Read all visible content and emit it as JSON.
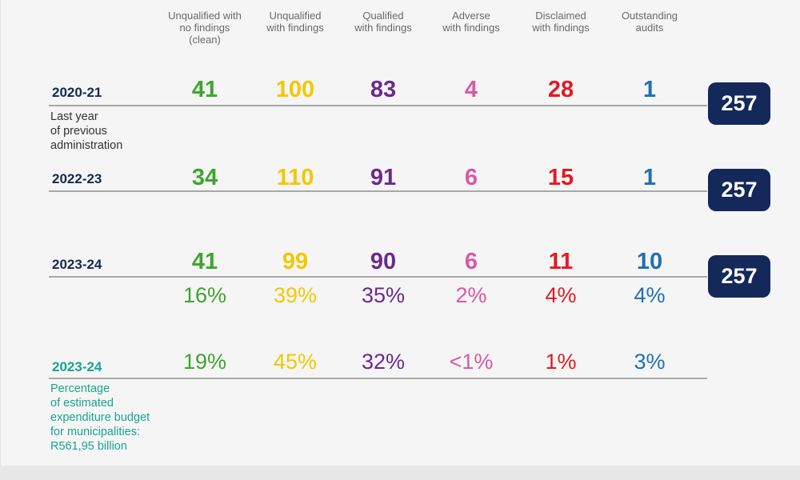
{
  "colors": {
    "clean": "#3ea52f",
    "unqualified_findings": "#f2c800",
    "qualified": "#6c2a8c",
    "adverse": "#d85aa3",
    "disclaimed": "#e01b24",
    "outstanding": "#1f6fb4",
    "navy": "#14285a",
    "teal": "#17a58e"
  },
  "chart_data": {
    "type": "table",
    "columns": [
      {
        "key": "clean",
        "header_lines": [
          "Unqualified with",
          "no findings",
          "(clean)"
        ]
      },
      {
        "key": "unqualified_findings",
        "header_lines": [
          "Unqualified",
          "with findings"
        ]
      },
      {
        "key": "qualified",
        "header_lines": [
          "Qualified",
          "with findings"
        ]
      },
      {
        "key": "adverse",
        "header_lines": [
          "Adverse",
          "with findings"
        ]
      },
      {
        "key": "disclaimed",
        "header_lines": [
          "Disclaimed",
          "with findings"
        ]
      },
      {
        "key": "outstanding",
        "header_lines": [
          "Outstanding",
          "audits"
        ]
      }
    ],
    "rows": [
      {
        "year": "2020-21",
        "subtitle_lines": [
          "Last year",
          "of previous",
          "administration"
        ],
        "values": [
          "41",
          "100",
          "83",
          "4",
          "28",
          "1"
        ],
        "total": "257"
      },
      {
        "year": "2022-23",
        "subtitle_lines": [],
        "values": [
          "34",
          "110",
          "91",
          "6",
          "15",
          "1"
        ],
        "total": "257"
      },
      {
        "year": "2023-24",
        "subtitle_lines": [],
        "values": [
          "41",
          "99",
          "90",
          "6",
          "11",
          "10"
        ],
        "percentages": [
          "16%",
          "39%",
          "35%",
          "2%",
          "4%",
          "4%"
        ],
        "total": "257"
      },
      {
        "year": "2023-24",
        "subtitle_lines": [
          "Percentage",
          "of estimated",
          "expenditure budget",
          "for municipalities:",
          "R561,95 billion"
        ],
        "percentages": [
          "19%",
          "45%",
          "32%",
          "<1%",
          "1%",
          "3%"
        ]
      }
    ]
  }
}
